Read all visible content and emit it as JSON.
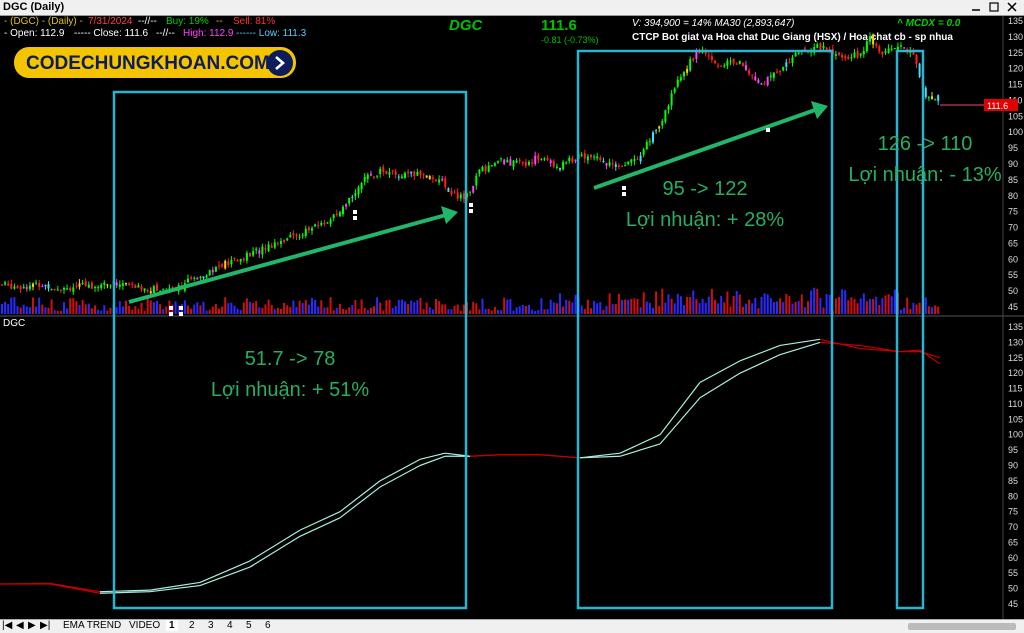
{
  "window": {
    "title": "DGC (Daily)"
  },
  "header": {
    "line1": {
      "symbol": "-  (DGC) - (Daily) -",
      "date": "7/31/2024",
      "sep": "--//--",
      "buy": "Buy: 19%",
      "sep2": "--",
      "sell": "Sell: 81%"
    },
    "line2": {
      "open": "- Open: 112.9",
      "close": "----- Close: 111.6",
      "sep": "--//--",
      "high": "High: 112.9",
      "low": "------ Low: 111.3"
    },
    "ticker": "DGC",
    "price": "111.6",
    "change": "-0.81 (-0.73%)",
    "volume": "V: 394,900  =  14%  MA30 (2,893,647)",
    "company": "CTCP Bot giat va Hoa chat Duc Giang (HSX) / Hoa chat cb - sp nhua",
    "mcdx": "^ MCDX = 0.0",
    "price_tag": "111.6",
    "lower_label": "DGC"
  },
  "logo": {
    "text": "CODECHUNGKHOAN.COM"
  },
  "annotations": {
    "a1": {
      "line1": "51.7 -> 78",
      "line2": "Lợi nhuận: + 51%"
    },
    "a2": {
      "line1": "95 -> 122",
      "line2": "Lợi nhuận: + 28%"
    },
    "a3": {
      "line1": "126 -> 110",
      "line2": "Lợi nhuận: - 13%"
    }
  },
  "colors": {
    "bg": "#000000",
    "up": "#00ff00",
    "down": "#ff2020",
    "box": "#28b4d2",
    "arrow": "#22b66a",
    "annotation": "#27ae60",
    "vol_blue": "#2a2aff",
    "vol_red": "#d01010",
    "ema": "#a8f0e0",
    "ema_red": "#c00000"
  },
  "tabs": {
    "ema": "EMA TREND",
    "video": "VIDEO",
    "pages": [
      "1",
      "2",
      "3",
      "4",
      "5",
      "6"
    ]
  },
  "chart_data": [
    {
      "type": "candlestick",
      "title": "DGC (Daily)",
      "ylim": [
        45,
        135
      ],
      "y_ticks": [
        "135",
        "130",
        "125",
        "120",
        "115",
        "110",
        "105",
        "100",
        "95",
        "90",
        "85",
        "80",
        "75",
        "70",
        "65",
        "60",
        "55",
        "50",
        "45"
      ],
      "close_trend": [
        [
          0,
          52
        ],
        [
          20,
          51.5
        ],
        [
          40,
          52
        ],
        [
          60,
          51
        ],
        [
          80,
          51.5
        ],
        [
          100,
          52
        ],
        [
          120,
          52.5
        ],
        [
          140,
          51
        ],
        [
          160,
          50.5
        ],
        [
          180,
          51.5
        ],
        [
          200,
          55
        ],
        [
          220,
          58
        ],
        [
          240,
          60
        ],
        [
          260,
          63
        ],
        [
          280,
          66
        ],
        [
          300,
          68
        ],
        [
          320,
          71
        ],
        [
          340,
          74
        ],
        [
          360,
          84
        ],
        [
          380,
          88
        ],
        [
          400,
          86
        ],
        [
          420,
          87
        ],
        [
          440,
          85
        ],
        [
          455,
          80
        ],
        [
          465,
          79
        ],
        [
          480,
          88
        ],
        [
          500,
          91
        ],
        [
          520,
          90
        ],
        [
          540,
          92
        ],
        [
          560,
          89
        ],
        [
          580,
          93
        ],
        [
          600,
          91
        ],
        [
          620,
          88
        ],
        [
          640,
          93
        ],
        [
          660,
          102
        ],
        [
          680,
          118
        ],
        [
          700,
          126
        ],
        [
          720,
          121
        ],
        [
          740,
          123
        ],
        [
          760,
          115
        ],
        [
          780,
          120
        ],
        [
          800,
          125
        ],
        [
          820,
          127
        ],
        [
          840,
          124
        ],
        [
          860,
          124
        ],
        [
          870,
          130
        ],
        [
          880,
          125
        ],
        [
          900,
          127
        ],
        [
          915,
          124
        ],
        [
          925,
          110
        ],
        [
          940,
          111.6
        ]
      ],
      "last_close": 111.6
    },
    {
      "type": "line",
      "title": "DGC",
      "ylim": [
        45,
        135
      ],
      "y_ticks": [
        "135",
        "130",
        "125",
        "120",
        "115",
        "110",
        "105",
        "100",
        "95",
        "90",
        "85",
        "80",
        "75",
        "70",
        "65",
        "60",
        "55",
        "50",
        "45"
      ],
      "series": [
        {
          "values": [
            [
              0,
              51.5
            ],
            [
              50,
              51.7
            ],
            [
              100,
              49
            ],
            [
              150,
              49.5
            ],
            [
              200,
              52
            ],
            [
              250,
              59
            ],
            [
              300,
              69
            ],
            [
              340,
              75
            ],
            [
              380,
              85
            ],
            [
              420,
              92
            ],
            [
              445,
              94
            ],
            [
              470,
              93
            ],
            [
              500,
              93.5
            ],
            [
              540,
              93.5
            ],
            [
              580,
              92.5
            ],
            [
              620,
              94
            ],
            [
              660,
              100
            ],
            [
              700,
              117
            ],
            [
              740,
              124
            ],
            [
              780,
              129
            ],
            [
              820,
              131
            ],
            [
              860,
              128
            ],
            [
              900,
              127
            ],
            [
              920,
              127.5
            ],
            [
              940,
              123
            ]
          ]
        },
        {
          "values": [
            [
              0,
              51.5
            ],
            [
              50,
              51.5
            ],
            [
              100,
              48.5
            ],
            [
              150,
              49
            ],
            [
              200,
              51
            ],
            [
              250,
              57
            ],
            [
              300,
              67
            ],
            [
              340,
              73
            ],
            [
              380,
              83
            ],
            [
              420,
              90
            ],
            [
              445,
              93
            ],
            [
              470,
              93
            ],
            [
              500,
              93.5
            ],
            [
              540,
              93.5
            ],
            [
              580,
              92.5
            ],
            [
              620,
              93
            ],
            [
              660,
              97
            ],
            [
              700,
              112
            ],
            [
              740,
              120
            ],
            [
              780,
              126
            ],
            [
              820,
              130
            ],
            [
              860,
              129
            ],
            [
              900,
              127
            ],
            [
              920,
              127
            ],
            [
              940,
              125
            ]
          ]
        }
      ]
    }
  ]
}
